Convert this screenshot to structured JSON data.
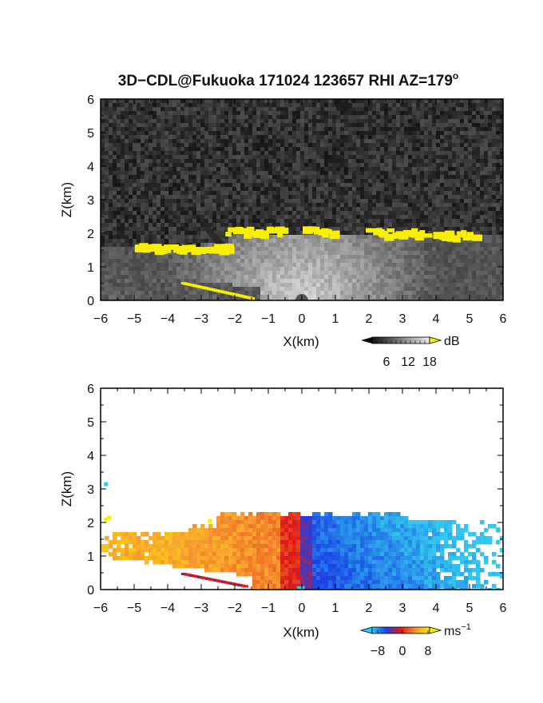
{
  "title": {
    "main": "3D−CDL@Fukuoka 171024 123657 RHI AZ=179",
    "degree": "o"
  },
  "chart_data": [
    {
      "type": "heatmap",
      "name": "reflectivity",
      "xlabel": "X(km)",
      "ylabel": "Z(km)",
      "xlim": [
        -6,
        6
      ],
      "ylim": [
        0,
        6
      ],
      "xticks": [
        "−6",
        "−5",
        "−4",
        "−3",
        "−2",
        "−1",
        "0",
        "1",
        "2",
        "3",
        "4",
        "5",
        "6"
      ],
      "yticks": [
        "0",
        "1",
        "2",
        "3",
        "4",
        "5",
        "6"
      ],
      "colorbar": {
        "unit": "dB",
        "ticks": [
          "6",
          "12",
          "18"
        ],
        "range": [
          0,
          20
        ]
      },
      "features": {
        "cloud_base_km": 2.0,
        "high_echo_segments": [
          {
            "x0": -2.3,
            "x1": -0.6,
            "z": 2.05
          },
          {
            "x0": 0.0,
            "x1": 1.0,
            "z": 2.05
          },
          {
            "x0": 1.9,
            "x1": 3.6,
            "z": 2.0
          },
          {
            "x0": 3.9,
            "x1": 5.1,
            "z": 1.95
          },
          {
            "x0": -5.0,
            "x1": -2.2,
            "z": 1.55
          }
        ]
      }
    },
    {
      "type": "heatmap",
      "name": "doppler_velocity",
      "xlabel": "X(km)",
      "ylabel": "Z(km)",
      "xlim": [
        -6,
        6
      ],
      "ylim": [
        0,
        6
      ],
      "xticks": [
        "−6",
        "−5",
        "−4",
        "−3",
        "−2",
        "−1",
        "0",
        "1",
        "2",
        "3",
        "4",
        "5",
        "6"
      ],
      "yticks": [
        "0",
        "1",
        "2",
        "3",
        "4",
        "5",
        "6"
      ],
      "colorbar": {
        "unit": "ms",
        "unit_exp": "−1",
        "ticks": [
          "−8",
          "0",
          "8"
        ],
        "range": [
          -10,
          10
        ]
      },
      "features": {
        "negative_side": "x > 0",
        "positive_side": "x < 0",
        "echo_top_km": 2.25
      }
    }
  ],
  "colors": {
    "yellow": "#f8f000",
    "cyan": "#33c6ee",
    "blue": "#1a40e6",
    "red": "#f04020",
    "orange": "#f8a030"
  }
}
